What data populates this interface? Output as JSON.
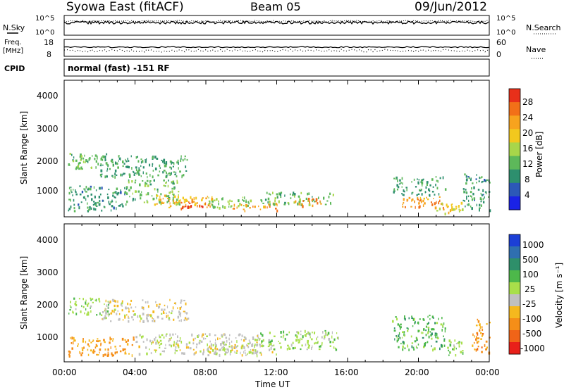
{
  "header": {
    "station": "Syowa East (fitACF)",
    "beam": "Beam 05",
    "date": "09/Jun/2012"
  },
  "status_panels": {
    "nsky_label": "N.Sky",
    "nsky_ticks": [
      "10^5",
      "10^0"
    ],
    "nsearch_label": "N.Search",
    "nsearch_ticks": [
      "10^5",
      "10^0"
    ],
    "freq_label_line1": "Freq.",
    "freq_label_line2": "[MHz]",
    "freq_ticks": [
      "18",
      "8"
    ],
    "nave_label": "Nave",
    "nave_ticks": [
      "60",
      "0"
    ],
    "cpid_label": "CPID",
    "cpid_text": "normal (fast) -151 RF"
  },
  "axes": {
    "ylabel": "Slant Range [km]",
    "yticks": [
      "4000",
      "3000",
      "2000",
      "1000"
    ],
    "xlabel": "Time UT",
    "xticks": [
      "00:00",
      "04:00",
      "08:00",
      "12:00",
      "16:00",
      "20:00",
      "00:00"
    ]
  },
  "colorbars": {
    "power": {
      "label": "Power [dB]",
      "ticks": [
        "28",
        "24",
        "20",
        "16",
        "12",
        "8",
        "4"
      ],
      "colors": [
        "#1a22e6",
        "#2c58b8",
        "#2d8f6e",
        "#5db85a",
        "#a8d64a",
        "#f2c81e",
        "#f7a31e",
        "#f27018",
        "#e8301a"
      ]
    },
    "velocity": {
      "label": "Velocity [m s⁻¹]",
      "ticks": [
        "1000",
        "500",
        "100",
        "25",
        "-25",
        "-100",
        "-500",
        "-1000"
      ],
      "colors": [
        "#1c3fd6",
        "#2f6fb0",
        "#2e8f6a",
        "#4db84a",
        "#a8df4a",
        "#c0c0c0",
        "#f5b81e",
        "#f58e18",
        "#f06418",
        "#e8201a"
      ]
    }
  },
  "chart_data": [
    {
      "type": "heatmap",
      "title": "",
      "ylabel": "Slant Range [km]",
      "xlabel": "Time UT",
      "quantity": "Power [dB]",
      "x_range_hours": [
        0,
        24
      ],
      "ylim_km": [
        180,
        4600
      ],
      "clim": [
        0,
        30
      ],
      "regions": [
        {
          "t0": 0.2,
          "t1": 2.5,
          "r0": 1750,
          "r1": 2250,
          "value": 12
        },
        {
          "t0": 2.0,
          "t1": 7.0,
          "r0": 1500,
          "r1": 2200,
          "value": 10
        },
        {
          "t0": 0.2,
          "t1": 3.5,
          "r0": 400,
          "r1": 1200,
          "value": 9
        },
        {
          "t0": 3.5,
          "t1": 6.5,
          "r0": 600,
          "r1": 1400,
          "value": 12
        },
        {
          "t0": 5.0,
          "t1": 8.5,
          "r0": 500,
          "r1": 900,
          "value": 20
        },
        {
          "t0": 6.5,
          "t1": 8.2,
          "r0": 450,
          "r1": 700,
          "value": 26
        },
        {
          "t0": 8.0,
          "t1": 10.5,
          "r0": 500,
          "r1": 850,
          "value": 14
        },
        {
          "t0": 9.5,
          "t1": 12.0,
          "r0": 400,
          "r1": 650,
          "value": 22
        },
        {
          "t0": 11.0,
          "t1": 15.5,
          "r0": 600,
          "r1": 1000,
          "value": 12
        },
        {
          "t0": 13.0,
          "t1": 14.5,
          "r0": 550,
          "r1": 800,
          "value": 24
        },
        {
          "t0": 18.5,
          "t1": 21.5,
          "r0": 900,
          "r1": 1500,
          "value": 10
        },
        {
          "t0": 19.0,
          "t1": 21.5,
          "r0": 500,
          "r1": 850,
          "value": 22
        },
        {
          "t0": 21.0,
          "t1": 22.5,
          "r0": 300,
          "r1": 700,
          "value": 18
        },
        {
          "t0": 22.5,
          "t1": 24.0,
          "r0": 400,
          "r1": 1600,
          "value": 9
        }
      ]
    },
    {
      "type": "heatmap",
      "title": "",
      "ylabel": "Slant Range [km]",
      "xlabel": "Time UT",
      "quantity": "Velocity [m s-1]",
      "x_range_hours": [
        0,
        24
      ],
      "ylim_km": [
        180,
        4600
      ],
      "clim": [
        -1000,
        1000
      ],
      "regions": [
        {
          "t0": 0.2,
          "t1": 2.5,
          "r0": 1700,
          "r1": 2250,
          "value": 150
        },
        {
          "t0": 2.0,
          "t1": 7.0,
          "r0": 1500,
          "r1": 2200,
          "value": -150
        },
        {
          "t0": 0.2,
          "t1": 4.0,
          "r0": 400,
          "r1": 1000,
          "value": -400
        },
        {
          "t0": 4.0,
          "t1": 11.0,
          "r0": 450,
          "r1": 1100,
          "value": -80
        },
        {
          "t0": 8.0,
          "t1": 12.0,
          "r0": 400,
          "r1": 800,
          "value": -60
        },
        {
          "t0": 11.0,
          "t1": 15.5,
          "r0": 600,
          "r1": 1200,
          "value": 120
        },
        {
          "t0": 18.5,
          "t1": 21.5,
          "r0": 600,
          "r1": 1700,
          "value": 300
        },
        {
          "t0": 21.5,
          "t1": 22.5,
          "r0": 400,
          "r1": 900,
          "value": 120
        },
        {
          "t0": 23.0,
          "t1": 24.0,
          "r0": 500,
          "r1": 1600,
          "value": -450
        }
      ]
    }
  ]
}
